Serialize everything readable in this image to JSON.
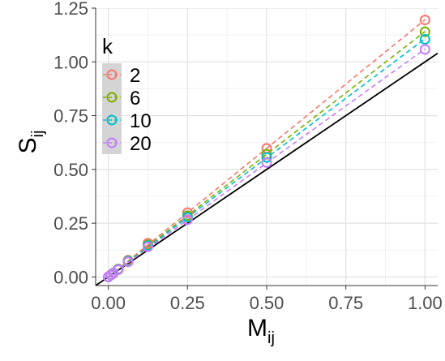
{
  "chart_data": {
    "type": "scatter",
    "title": "",
    "xlabel": "M",
    "xlabel_sub": "ij",
    "ylabel": "S",
    "ylabel_sub": "ij",
    "xlim": [
      -0.04,
      1.04
    ],
    "ylim": [
      -0.04,
      1.25
    ],
    "x_ticks": [
      0.0,
      0.25,
      0.5,
      0.75,
      1.0
    ],
    "x_tick_labels": [
      "0.00",
      "0.25",
      "0.50",
      "0.75",
      "1.00"
    ],
    "y_ticks": [
      0.0,
      0.25,
      0.5,
      0.75,
      1.0,
      1.25
    ],
    "y_tick_labels": [
      "0.00",
      "0.25",
      "0.50",
      "0.75",
      "1.00",
      "1.25"
    ],
    "grid": true,
    "legend": {
      "title": "k",
      "placement": "top-left"
    },
    "x": [
      0,
      0.0078125,
      0.015625,
      0.03125,
      0.0625,
      0.125,
      0.25,
      0.5,
      1.0
    ],
    "series": [
      {
        "name": "2",
        "color": "#F8766D",
        "values": [
          0,
          0.0093,
          0.0187,
          0.0373,
          0.0781,
          0.157,
          0.299,
          0.598,
          1.195
        ]
      },
      {
        "name": "6",
        "color": "#7CAE00",
        "values": [
          0,
          0.0089,
          0.0178,
          0.0355,
          0.0745,
          0.149,
          0.285,
          0.571,
          1.14
        ]
      },
      {
        "name": "10",
        "color": "#00BFC4",
        "values": [
          0,
          0.0087,
          0.0174,
          0.0348,
          0.073,
          0.146,
          0.278,
          0.556,
          1.105
        ]
      },
      {
        "name": "20",
        "color": "#C77CFF",
        "values": [
          0,
          0.0083,
          0.0166,
          0.0333,
          0.07,
          0.14,
          0.266,
          0.532,
          1.058
        ]
      }
    ],
    "reference_line": {
      "slope": 1,
      "intercept": 0,
      "color": "#000000"
    }
  }
}
